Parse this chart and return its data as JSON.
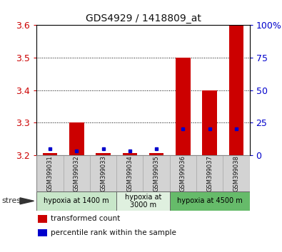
{
  "title": "GDS4929 / 1418809_at",
  "samples": [
    "GSM399031",
    "GSM399032",
    "GSM399033",
    "GSM399034",
    "GSM399035",
    "GSM399036",
    "GSM399037",
    "GSM399038"
  ],
  "red_values": [
    3.205,
    3.3,
    3.205,
    3.205,
    3.205,
    3.5,
    3.4,
    3.6
  ],
  "blue_percentiles": [
    5,
    3,
    5,
    3,
    5,
    20,
    20,
    20
  ],
  "ylim_left": [
    3.2,
    3.6
  ],
  "ylim_right": [
    0,
    100
  ],
  "yticks_left": [
    3.2,
    3.3,
    3.4,
    3.5,
    3.6
  ],
  "yticks_right": [
    0,
    25,
    50,
    75,
    100
  ],
  "ybaseline": 3.2,
  "groups": [
    {
      "label": "hypoxia at 1400 m",
      "start": 0,
      "end": 3,
      "color": "#c8e6c9"
    },
    {
      "label": "hypoxia at\n3000 m",
      "start": 3,
      "end": 5,
      "color": "#dff0df"
    },
    {
      "label": "hypoxia at 4500 m",
      "start": 5,
      "end": 8,
      "color": "#66bb6a"
    }
  ],
  "red_color": "#cc0000",
  "blue_color": "#0000cc",
  "left_tick_color": "#cc0000",
  "right_tick_color": "#0000cc",
  "stress_label": "stress",
  "legend_red": "transformed count",
  "legend_blue": "percentile rank within the sample",
  "bar_width": 0.55
}
